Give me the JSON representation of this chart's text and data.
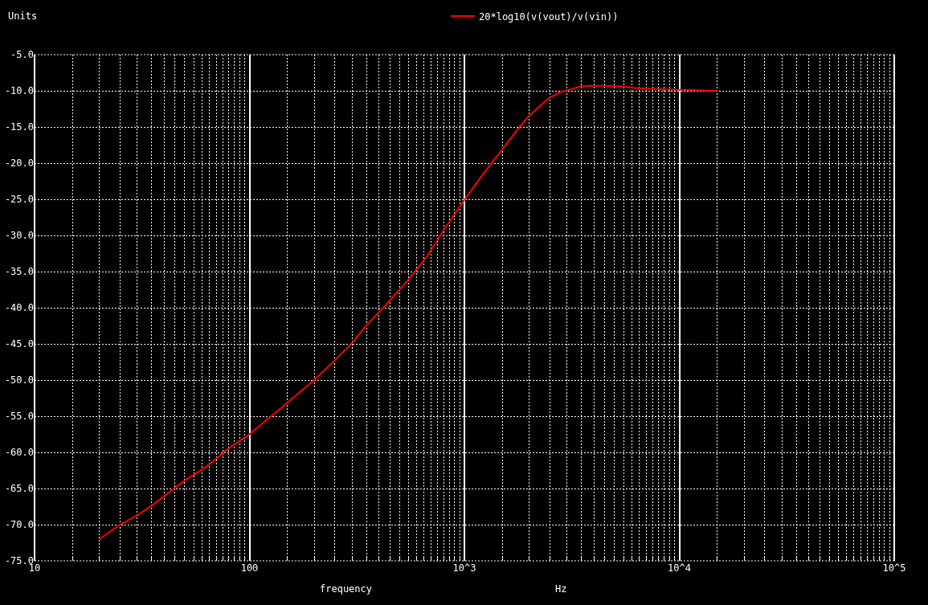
{
  "chart_data": {
    "type": "line",
    "ylabel": "Units",
    "xlabel": "frequency",
    "annotations": [
      "Hz"
    ],
    "x": [
      20,
      25,
      30,
      35,
      40,
      45,
      50,
      60,
      70,
      77,
      90,
      100,
      118,
      130,
      200,
      247,
      300,
      344,
      434,
      546,
      666,
      813,
      1000,
      1208,
      1403,
      1476,
      1806,
      1968,
      2208,
      2477,
      2780,
      3030,
      3494,
      3920,
      4520,
      5370,
      6200,
      8500,
      15000
    ],
    "series": [
      {
        "name": "20*log10(v(vout)/v(vin))",
        "color": "#ff0000",
        "values": [
          -72.0,
          -70.0,
          -68.7,
          -67.4,
          -66.1,
          -64.9,
          -63.9,
          -62.4,
          -60.9,
          -59.8,
          -58.4,
          -57.5,
          -55.7,
          -54.7,
          -50.0,
          -47.4,
          -44.9,
          -42.7,
          -39.5,
          -36.2,
          -33.0,
          -29.0,
          -25.1,
          -21.7,
          -19.2,
          -18.4,
          -15.0,
          -13.7,
          -12.3,
          -11.0,
          -10.2,
          -9.9,
          -9.4,
          -9.3,
          -9.3,
          -9.4,
          -9.6,
          -9.8,
          -10.0
        ]
      }
    ],
    "xlim": [
      10,
      100000
    ],
    "ylim": [
      -75,
      -5
    ],
    "xticks": [
      10,
      100,
      {
        "value": 1000,
        "label": "10^3"
      },
      {
        "value": 10000,
        "label": "10^4"
      },
      {
        "value": 100000,
        "label": "10^5"
      }
    ],
    "yticks": [
      {
        "value": -75,
        "label": "-75.0"
      },
      {
        "value": -70,
        "label": "-70.0"
      },
      {
        "value": -65,
        "label": "-65.0"
      },
      {
        "value": -60,
        "label": "-60.0"
      },
      {
        "value": -55,
        "label": "-55.0"
      },
      {
        "value": -50,
        "label": "-50.0"
      },
      {
        "value": -45,
        "label": "-45.0"
      },
      {
        "value": -40,
        "label": "-40.0"
      },
      {
        "value": -35,
        "label": "-35.0"
      },
      {
        "value": -30,
        "label": "-30.0"
      },
      {
        "value": -25,
        "label": "-25.0"
      },
      {
        "value": -20,
        "label": "-20.0"
      },
      {
        "value": -15,
        "label": "-15.0"
      },
      {
        "value": -10,
        "label": "-10.0"
      },
      {
        "value": -5,
        "label": "-5.0"
      }
    ],
    "log": "x",
    "grid": true,
    "legend": "top",
    "line_style": "solid"
  }
}
